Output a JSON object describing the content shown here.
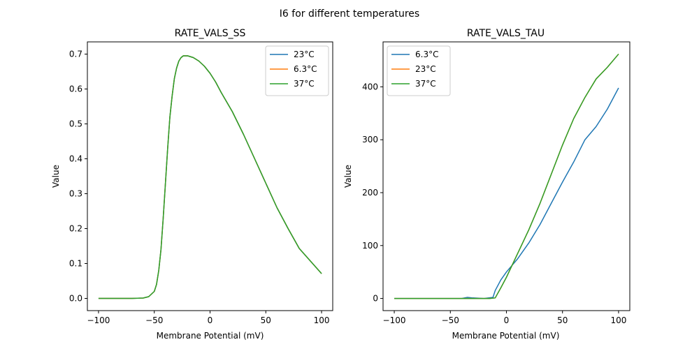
{
  "figure": {
    "suptitle": "I6 for different temperatures"
  },
  "colors": {
    "blue": "#1f77b4",
    "orange": "#ff7f0e",
    "green": "#2ca02c"
  },
  "chart_data": [
    {
      "type": "line",
      "title": "RATE_VALS_SS",
      "xlabel": "Membrane Potential (mV)",
      "ylabel": "Value",
      "xlim": [
        -110,
        110
      ],
      "ylim": [
        -0.035,
        0.735
      ],
      "xticks": [
        -100,
        -50,
        0,
        50,
        100
      ],
      "xtick_labels": [
        "−100",
        "−50",
        "0",
        "50",
        "100"
      ],
      "yticks": [
        0.0,
        0.1,
        0.2,
        0.3,
        0.4,
        0.5,
        0.6,
        0.7
      ],
      "ytick_labels": [
        "0.0",
        "0.1",
        "0.2",
        "0.3",
        "0.4",
        "0.5",
        "0.6",
        "0.7"
      ],
      "legend_position": "upper right",
      "series": [
        {
          "name": "23°C",
          "color": "#1f77b4",
          "x": [
            -100,
            -90,
            -80,
            -70,
            -60,
            -55,
            -50,
            -48,
            -46,
            -44,
            -42,
            -40,
            -38,
            -36,
            -34,
            -32,
            -30,
            -28,
            -26,
            -24,
            -22,
            -20,
            -18,
            -15,
            -10,
            -5,
            0,
            5,
            10,
            20,
            30,
            40,
            50,
            60,
            70,
            80,
            90,
            100
          ],
          "y": [
            0,
            0,
            0,
            0,
            0.001,
            0.005,
            0.02,
            0.04,
            0.08,
            0.14,
            0.23,
            0.33,
            0.43,
            0.52,
            0.58,
            0.63,
            0.66,
            0.68,
            0.69,
            0.695,
            0.695,
            0.695,
            0.693,
            0.69,
            0.68,
            0.665,
            0.645,
            0.62,
            0.59,
            0.535,
            0.47,
            0.4,
            0.33,
            0.26,
            0.2,
            0.143,
            0.107,
            0.071
          ]
        },
        {
          "name": "6.3°C",
          "color": "#ff7f0e",
          "x": [
            -100,
            -90,
            -80,
            -70,
            -60,
            -55,
            -50,
            -48,
            -46,
            -44,
            -42,
            -40,
            -38,
            -36,
            -34,
            -32,
            -30,
            -28,
            -26,
            -24,
            -22,
            -20,
            -18,
            -15,
            -10,
            -5,
            0,
            5,
            10,
            20,
            30,
            40,
            50,
            60,
            70,
            80,
            90,
            100
          ],
          "y": [
            0,
            0,
            0,
            0,
            0.001,
            0.005,
            0.02,
            0.04,
            0.08,
            0.14,
            0.23,
            0.33,
            0.43,
            0.52,
            0.58,
            0.63,
            0.66,
            0.68,
            0.69,
            0.695,
            0.695,
            0.695,
            0.693,
            0.69,
            0.68,
            0.665,
            0.645,
            0.62,
            0.59,
            0.535,
            0.47,
            0.4,
            0.33,
            0.26,
            0.2,
            0.143,
            0.107,
            0.071
          ]
        },
        {
          "name": "37°C",
          "color": "#2ca02c",
          "x": [
            -100,
            -90,
            -80,
            -70,
            -60,
            -55,
            -50,
            -48,
            -46,
            -44,
            -42,
            -40,
            -38,
            -36,
            -34,
            -32,
            -30,
            -28,
            -26,
            -24,
            -22,
            -20,
            -18,
            -15,
            -10,
            -5,
            0,
            5,
            10,
            20,
            30,
            40,
            50,
            60,
            70,
            80,
            90,
            100
          ],
          "y": [
            0,
            0,
            0,
            0,
            0.001,
            0.005,
            0.02,
            0.04,
            0.08,
            0.14,
            0.23,
            0.33,
            0.43,
            0.52,
            0.58,
            0.63,
            0.66,
            0.68,
            0.69,
            0.695,
            0.695,
            0.695,
            0.693,
            0.69,
            0.68,
            0.665,
            0.645,
            0.62,
            0.59,
            0.535,
            0.47,
            0.4,
            0.33,
            0.26,
            0.2,
            0.143,
            0.107,
            0.071
          ]
        }
      ]
    },
    {
      "type": "line",
      "title": "RATE_VALS_TAU",
      "xlabel": "Membrane Potential (mV)",
      "ylabel": "Value",
      "xlim": [
        -110,
        110
      ],
      "ylim": [
        -23,
        485
      ],
      "xticks": [
        -100,
        -50,
        0,
        50,
        100
      ],
      "xtick_labels": [
        "−100",
        "−50",
        "0",
        "50",
        "100"
      ],
      "yticks": [
        0,
        100,
        200,
        300,
        400
      ],
      "ytick_labels": [
        "0",
        "100",
        "200",
        "300",
        "400"
      ],
      "legend_position": "upper left",
      "series": [
        {
          "name": "6.3°C",
          "color": "#1f77b4",
          "x": [
            -100,
            -80,
            -60,
            -40,
            -35,
            -30,
            -20,
            -12,
            -10,
            -5,
            0,
            10,
            20,
            30,
            40,
            50,
            60,
            70,
            80,
            90,
            100
          ],
          "y": [
            0,
            0,
            0,
            0,
            2,
            1,
            0,
            2,
            15,
            35,
            50,
            75,
            105,
            140,
            180,
            220,
            258,
            300,
            325,
            358,
            398
          ]
        },
        {
          "name": "23°C",
          "color": "#ff7f0e",
          "x": [
            -100,
            -80,
            -60,
            -40,
            -20,
            -15,
            -10,
            -5,
            0,
            10,
            20,
            30,
            40,
            50,
            60,
            70,
            80,
            90,
            100
          ],
          "y": [
            0,
            0,
            0,
            0,
            0,
            0,
            1,
            20,
            40,
            85,
            130,
            180,
            235,
            290,
            340,
            380,
            415,
            437,
            462
          ]
        },
        {
          "name": "37°C",
          "color": "#2ca02c",
          "x": [
            -100,
            -80,
            -60,
            -40,
            -20,
            -15,
            -10,
            -5,
            0,
            10,
            20,
            30,
            40,
            50,
            60,
            70,
            80,
            90,
            100
          ],
          "y": [
            0,
            0,
            0,
            0,
            0,
            0,
            1,
            20,
            40,
            85,
            130,
            180,
            235,
            290,
            340,
            380,
            415,
            437,
            462
          ]
        }
      ]
    }
  ]
}
